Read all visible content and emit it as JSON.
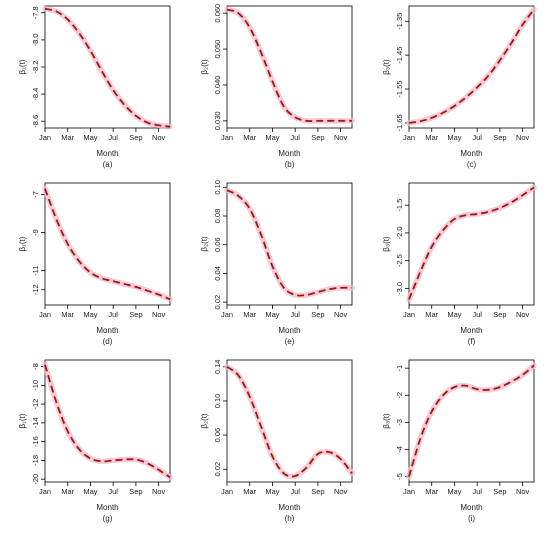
{
  "figure": {
    "xlabel": "Month",
    "month_ticks": [
      "Jan",
      "Mar",
      "May",
      "Jul",
      "Sep",
      "Nov"
    ],
    "month_tick_positions": [
      1,
      3,
      5,
      7,
      9,
      11
    ],
    "colors": {
      "curve": "#9b1c12",
      "band": "#f4b8c8",
      "frame": "#000000"
    }
  },
  "chart_data": [
    {
      "type": "line",
      "caption": "(a)",
      "ylabel": "β₁(t)",
      "xlabel": "Month",
      "xlim": [
        1,
        12
      ],
      "ylim": [
        -8.65,
        -7.75
      ],
      "yticks": [
        -7.8,
        -8.0,
        -8.2,
        -8.4,
        -8.6
      ],
      "yticklabels": [
        "-7.8",
        "-8.0",
        "-8.2",
        "-8.4",
        "-8.6"
      ],
      "x": [
        1,
        2,
        3,
        4,
        5,
        6,
        7,
        8,
        9,
        10,
        11,
        12
      ],
      "y": [
        -7.77,
        -7.79,
        -7.85,
        -7.95,
        -8.08,
        -8.23,
        -8.37,
        -8.48,
        -8.56,
        -8.61,
        -8.63,
        -8.64
      ]
    },
    {
      "type": "line",
      "caption": "(b)",
      "ylabel": "β₂(t)",
      "xlabel": "Month",
      "xlim": [
        1,
        12
      ],
      "ylim": [
        0.028,
        0.062
      ],
      "yticks": [
        0.06,
        0.05,
        0.04,
        0.03
      ],
      "yticklabels": [
        "0.060",
        "0.050",
        "0.040",
        "0.030"
      ],
      "x": [
        1,
        2,
        3,
        4,
        5,
        6,
        7,
        8,
        9,
        10,
        11,
        12
      ],
      "y": [
        0.061,
        0.06,
        0.056,
        0.049,
        0.041,
        0.034,
        0.031,
        0.03,
        0.03,
        0.03,
        0.03,
        0.03
      ]
    },
    {
      "type": "line",
      "caption": "(c)",
      "ylabel": "β₃(t)",
      "xlabel": "Month",
      "xlim": [
        1,
        12
      ],
      "ylim": [
        -1.665,
        -1.305
      ],
      "yticks": [
        -1.35,
        -1.45,
        -1.55,
        -1.65
      ],
      "yticklabels": [
        "-1.35",
        "-1.45",
        "-1.55",
        "-1.65"
      ],
      "x": [
        1,
        2,
        3,
        4,
        5,
        6,
        7,
        8,
        9,
        10,
        11,
        12
      ],
      "y": [
        -1.65,
        -1.645,
        -1.635,
        -1.62,
        -1.6,
        -1.575,
        -1.545,
        -1.51,
        -1.465,
        -1.415,
        -1.36,
        -1.315
      ]
    },
    {
      "type": "line",
      "caption": "(d)",
      "ylabel": "β₁(t)",
      "xlabel": "Month",
      "xlim": [
        1,
        12
      ],
      "ylim": [
        -12.8,
        -6.4
      ],
      "yticks": [
        -7,
        -9,
        -11,
        -12
      ],
      "yticklabels": [
        "-7",
        "-9",
        "-11",
        "-12"
      ],
      "x": [
        1,
        2,
        3,
        4,
        5,
        6,
        7,
        8,
        9,
        10,
        11,
        12
      ],
      "y": [
        -6.7,
        -8.3,
        -9.6,
        -10.5,
        -11.1,
        -11.4,
        -11.55,
        -11.7,
        -11.85,
        -12.05,
        -12.25,
        -12.5
      ]
    },
    {
      "type": "line",
      "caption": "(e)",
      "ylabel": "β₂(t)",
      "xlabel": "Month",
      "xlim": [
        1,
        12
      ],
      "ylim": [
        0.018,
        0.103
      ],
      "yticks": [
        0.1,
        0.08,
        0.06,
        0.04,
        0.02
      ],
      "yticklabels": [
        "0.10",
        "0.08",
        "0.06",
        "0.04",
        "0.02"
      ],
      "x": [
        1,
        2,
        3,
        4,
        5,
        6,
        7,
        8,
        9,
        10,
        11,
        12
      ],
      "y": [
        0.098,
        0.094,
        0.085,
        0.067,
        0.045,
        0.03,
        0.025,
        0.025,
        0.027,
        0.029,
        0.03,
        0.03
      ]
    },
    {
      "type": "line",
      "caption": "(f)",
      "ylabel": "β₃(t)",
      "xlabel": "Month",
      "xlim": [
        1,
        12
      ],
      "ylim": [
        -3.3,
        -1.1
      ],
      "yticks": [
        -1.5,
        -2.0,
        -2.5,
        -3.0
      ],
      "yticklabels": [
        "-1.5",
        "-2.0",
        "-2.5",
        "-3.0"
      ],
      "x": [
        1,
        2,
        3,
        4,
        5,
        6,
        7,
        8,
        9,
        10,
        11,
        12
      ],
      "y": [
        -3.2,
        -2.7,
        -2.25,
        -1.95,
        -1.75,
        -1.68,
        -1.66,
        -1.62,
        -1.55,
        -1.45,
        -1.32,
        -1.18
      ]
    },
    {
      "type": "line",
      "caption": "(g)",
      "ylabel": "β₁(t)",
      "xlabel": "Month",
      "xlim": [
        1,
        12
      ],
      "ylim": [
        -20.3,
        -7.3
      ],
      "yticks": [
        -8,
        -10,
        -12,
        -14,
        -16,
        -18,
        -20
      ],
      "yticklabels": [
        "-8",
        "-10",
        "-12",
        "-14",
        "-16",
        "-18",
        "-20"
      ],
      "x": [
        1,
        2,
        3,
        4,
        5,
        6,
        7,
        8,
        9,
        10,
        11,
        12
      ],
      "y": [
        -7.8,
        -11.8,
        -14.9,
        -16.8,
        -17.8,
        -18.1,
        -18.0,
        -17.9,
        -17.9,
        -18.3,
        -19.0,
        -19.8
      ]
    },
    {
      "type": "line",
      "caption": "(h)",
      "ylabel": "β₂(t)",
      "xlabel": "Month",
      "xlim": [
        1,
        12
      ],
      "ylim": [
        0.005,
        0.148
      ],
      "yticks": [
        0.14,
        0.1,
        0.06,
        0.02
      ],
      "yticklabels": [
        "0.14",
        "0.10",
        "0.06",
        "0.02"
      ],
      "x": [
        1,
        2,
        3,
        4,
        5,
        6,
        7,
        8,
        9,
        10,
        11,
        12
      ],
      "y": [
        0.14,
        0.13,
        0.105,
        0.07,
        0.035,
        0.015,
        0.012,
        0.022,
        0.038,
        0.04,
        0.032,
        0.015
      ]
    },
    {
      "type": "line",
      "caption": "(i)",
      "ylabel": "β₃(t)",
      "xlabel": "Month",
      "xlim": [
        1,
        12
      ],
      "ylim": [
        -5.2,
        -0.7
      ],
      "yticks": [
        -1,
        -2,
        -3,
        -4,
        -5
      ],
      "yticklabels": [
        "-1",
        "-2",
        "-3",
        "-4",
        "-5"
      ],
      "x": [
        1,
        2,
        3,
        4,
        5,
        6,
        7,
        8,
        9,
        10,
        11,
        12
      ],
      "y": [
        -5.0,
        -3.6,
        -2.6,
        -2.0,
        -1.7,
        -1.65,
        -1.78,
        -1.8,
        -1.7,
        -1.5,
        -1.25,
        -0.9
      ]
    }
  ]
}
